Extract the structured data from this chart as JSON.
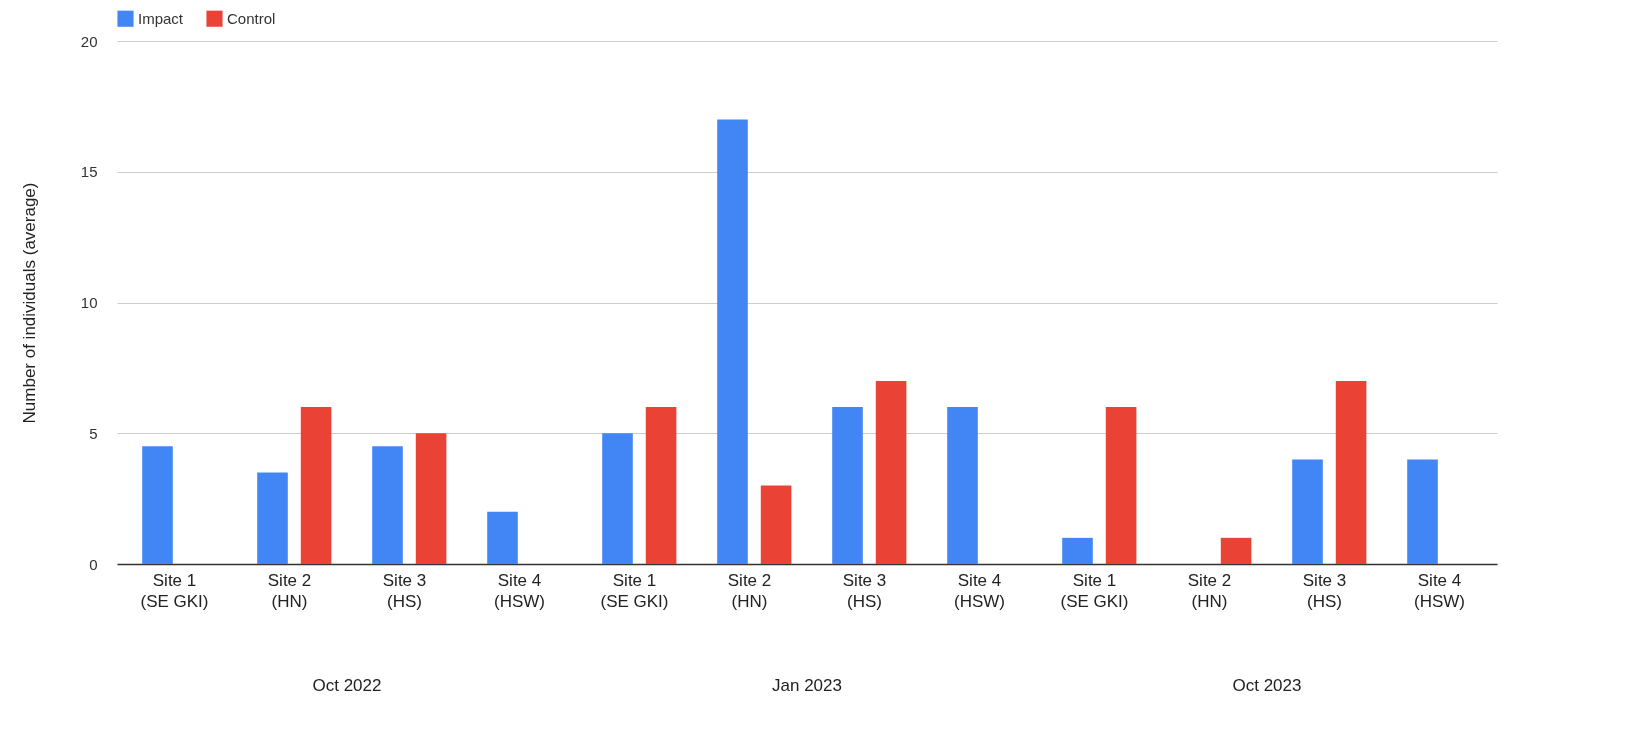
{
  "chart_data": {
    "type": "bar",
    "ylabel": "Number of individuals (average)",
    "categories": [
      "Site 1\n(SE GKI)",
      "Site 2\n(HN)",
      "Site 3\n(HS)",
      "Site 4\n(HSW)",
      "Site 1\n(SE GKI)",
      "Site 2\n(HN)",
      "Site 3\n(HS)",
      "Site 4\n(HSW)",
      "Site 1\n(SE GKI)",
      "Site 2\n(HN)",
      "Site 3\n(HS)",
      "Site 4\n(HSW)"
    ],
    "series": [
      {
        "name": "Impact",
        "color": "#4285f4",
        "values": [
          4.5,
          3.5,
          4.5,
          2,
          5,
          17,
          6,
          6,
          1,
          0,
          4,
          4
        ]
      },
      {
        "name": "Control",
        "color": "#ea4335",
        "values": [
          0,
          6,
          5,
          0,
          6,
          3,
          7,
          0,
          6,
          1,
          7,
          0
        ]
      }
    ],
    "annotations": [
      "Oct 2022",
      "Jan 2023",
      "Oct 2023"
    ],
    "ylim": [
      0,
      20
    ],
    "yticks": [
      0,
      5,
      10,
      15,
      20
    ],
    "grid": "y",
    "legend": "top"
  }
}
